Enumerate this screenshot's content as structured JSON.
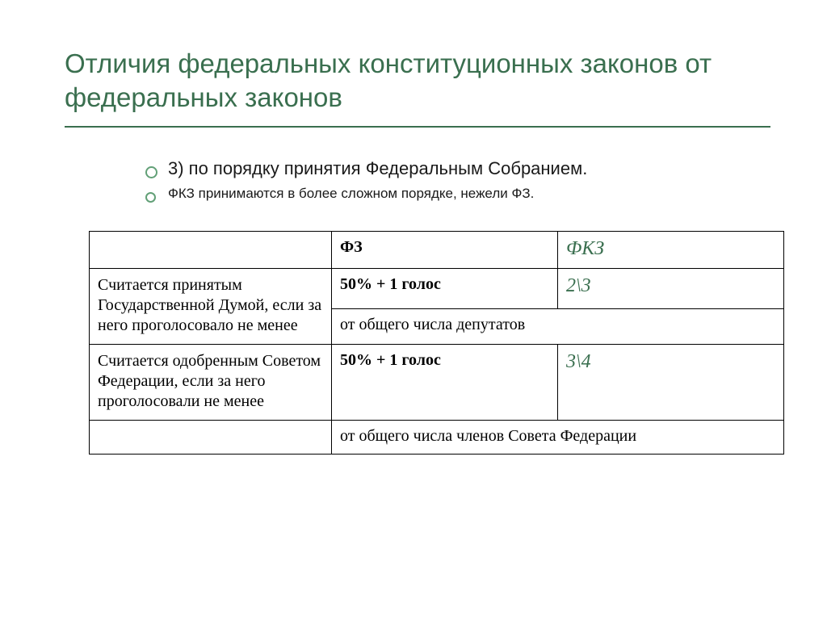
{
  "colors": {
    "title": "#3a6f4f",
    "rule": "#3a6f4f",
    "bullet_ring": "#62a077",
    "italic_header": "#3a6f4f",
    "italic_cell": "#3a6f4f"
  },
  "title": "Отличия федеральных конституционных законов от федеральных законов",
  "bullets": {
    "main": "3) по порядку принятия Федеральным Собранием.",
    "sub": "ФКЗ принимаются в более сложном порядке, нежели ФЗ."
  },
  "table": {
    "header": {
      "left": "",
      "mid": "ФЗ",
      "right": "ФКЗ"
    },
    "rows": [
      {
        "label": "Считается принятым Государственной Думой, если за него проголосовало не менее",
        "mid": "50% + 1 голос",
        "right": "2\\3",
        "note": "от общего числа депутатов"
      },
      {
        "label": "Считается одобренным Советом Федерации, если за него проголосовали не менее",
        "mid": "50% + 1 голос",
        "right": "3\\4",
        "note": "от общего числа членов Совета Федерации"
      }
    ]
  },
  "fonts": {
    "title_size": 33,
    "bullet_main_size": 22,
    "bullet_sub_size": 17,
    "table_label_size": 20,
    "table_italic_size": 24
  }
}
